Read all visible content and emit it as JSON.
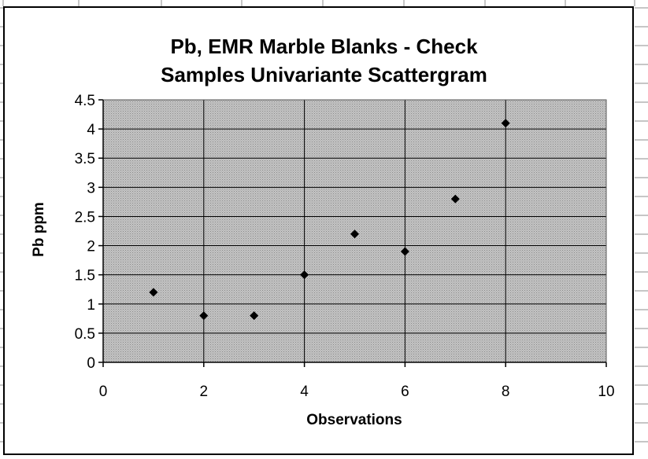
{
  "colors": {
    "plot_background": "#b4b4b4",
    "marker": "#000000",
    "gridline": "#000000",
    "spreadsheet_grid": "#8c8c8c"
  },
  "chart_data": {
    "type": "scatter",
    "title": "Pb, EMR Marble Blanks - Check Samples Univariante Scattergram",
    "title_lines": [
      "Pb, EMR Marble Blanks - Check",
      "Samples Univariante Scattergram"
    ],
    "xlabel": "Observations",
    "ylabel": "Pb ppm",
    "xlim": [
      0,
      10
    ],
    "ylim": [
      0,
      4.5
    ],
    "x_ticks": [
      "0",
      "2",
      "4",
      "6",
      "8",
      "10"
    ],
    "y_ticks": [
      "0",
      "0.5",
      "1",
      "1.5",
      "2",
      "2.5",
      "3",
      "3.5",
      "4",
      "4.5"
    ],
    "grid": true,
    "legend": "none",
    "marker": "diamond",
    "series": [
      {
        "x": [
          1,
          2,
          3,
          4,
          5,
          6,
          7,
          8
        ],
        "y": [
          1.2,
          0.8,
          0.8,
          1.5,
          2.2,
          1.9,
          2.8,
          4.1
        ]
      }
    ]
  }
}
